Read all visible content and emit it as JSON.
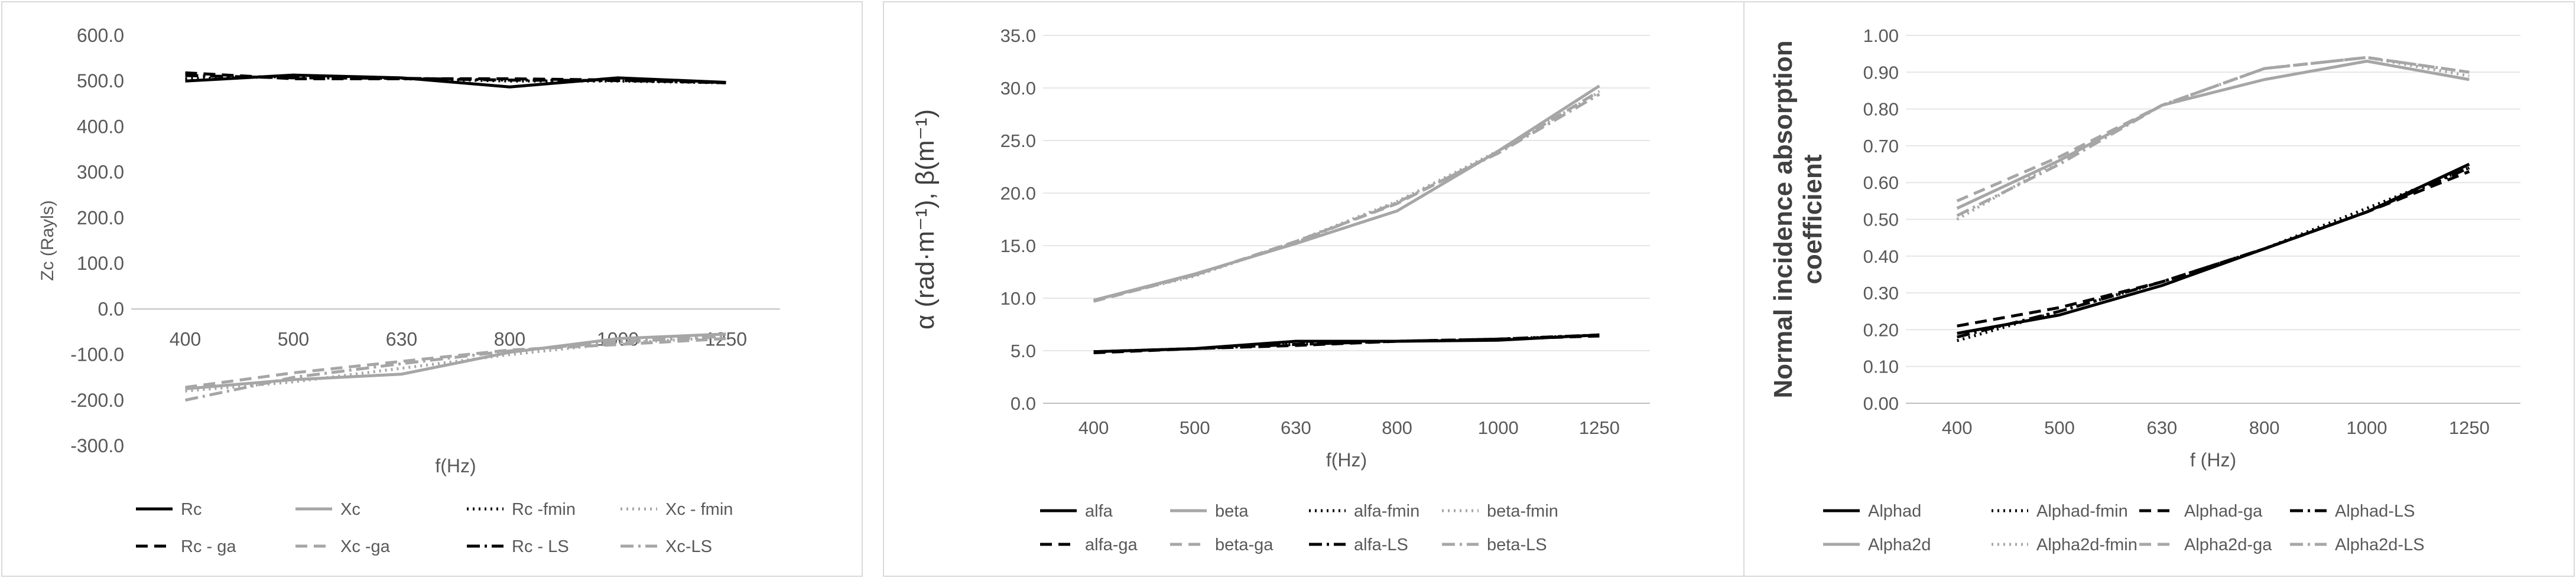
{
  "chart_data": [
    {
      "type": "line",
      "title": "",
      "xlabel": "f(Hz)",
      "ylabel": "Zc (Rayls)",
      "ylim": [
        -300,
        600
      ],
      "yticks": [
        "-300.0",
        "-200.0",
        "-100.0",
        "0.0",
        "100.0",
        "200.0",
        "300.0",
        "400.0",
        "500.0",
        "600.0"
      ],
      "categories": [
        "400",
        "500",
        "630",
        "800",
        "1000",
        "1250"
      ],
      "gridlines": false,
      "legend_position": "bottom",
      "series": [
        {
          "name": "Rc",
          "values": [
            500,
            513,
            507,
            487,
            507,
            497
          ],
          "color": "#000000",
          "dash": "solid"
        },
        {
          "name": "Xc",
          "values": [
            -175,
            -155,
            -143,
            -95,
            -65,
            -55
          ],
          "color": "#a6a6a6",
          "dash": "solid"
        },
        {
          "name": "Rc -fmin",
          "values": [
            505,
            510,
            505,
            500,
            500,
            496
          ],
          "color": "#000000",
          "dash": "dot"
        },
        {
          "name": "Xc - fmin",
          "values": [
            -180,
            -160,
            -130,
            -100,
            -75,
            -62
          ],
          "color": "#a6a6a6",
          "dash": "dot"
        },
        {
          "name": "Rc - ga",
          "values": [
            518,
            505,
            505,
            505,
            502,
            496
          ],
          "color": "#000000",
          "dash": "dash"
        },
        {
          "name": "Xc -ga",
          "values": [
            -172,
            -140,
            -115,
            -90,
            -78,
            -65
          ],
          "color": "#a6a6a6",
          "dash": "dash"
        },
        {
          "name": "Rc - LS",
          "values": [
            512,
            507,
            506,
            502,
            501,
            497
          ],
          "color": "#000000",
          "dash": "dashdot"
        },
        {
          "name": "Xc-LS",
          "values": [
            -200,
            -150,
            -120,
            -92,
            -72,
            -60
          ],
          "color": "#a6a6a6",
          "dash": "dashdot"
        }
      ]
    },
    {
      "type": "line",
      "title": "",
      "xlabel": "f(Hz)",
      "ylabel": "α (rad·m⁻¹), β(m⁻¹)",
      "ylim": [
        0,
        35
      ],
      "yticks": [
        "0.0",
        "5.0",
        "10.0",
        "15.0",
        "20.0",
        "25.0",
        "30.0",
        "35.0"
      ],
      "categories": [
        "400",
        "500",
        "630",
        "800",
        "1000",
        "1250"
      ],
      "gridlines": true,
      "legend_position": "bottom",
      "series": [
        {
          "name": "alfa",
          "values": [
            4.9,
            5.2,
            5.9,
            5.9,
            6.0,
            6.5
          ],
          "color": "#000000",
          "dash": "solid"
        },
        {
          "name": "beta",
          "values": [
            9.8,
            12.3,
            15.2,
            18.3,
            24.0,
            30.2
          ],
          "color": "#a6a6a6",
          "dash": "solid"
        },
        {
          "name": "alfa-fmin",
          "values": [
            4.9,
            5.2,
            5.6,
            5.9,
            6.1,
            6.5
          ],
          "color": "#000000",
          "dash": "dot"
        },
        {
          "name": "beta-fmin",
          "values": [
            9.8,
            12.1,
            15.4,
            19.2,
            24.0,
            29.6
          ],
          "color": "#a6a6a6",
          "dash": "dot"
        },
        {
          "name": "alfa-ga",
          "values": [
            4.8,
            5.2,
            5.5,
            5.9,
            6.1,
            6.4
          ],
          "color": "#000000",
          "dash": "dash"
        },
        {
          "name": "beta-ga",
          "values": [
            9.7,
            12.2,
            15.4,
            19.0,
            23.9,
            29.7
          ],
          "color": "#a6a6a6",
          "dash": "dash"
        },
        {
          "name": "alfa-LS",
          "values": [
            4.9,
            5.2,
            5.6,
            5.9,
            6.1,
            6.5
          ],
          "color": "#000000",
          "dash": "dashdot"
        },
        {
          "name": "beta-LS",
          "values": [
            9.8,
            12.2,
            15.3,
            19.1,
            23.8,
            29.4
          ],
          "color": "#a6a6a6",
          "dash": "dashdot"
        }
      ]
    },
    {
      "type": "line",
      "title": "",
      "xlabel": "f (Hz)",
      "ylabel": "Normal incidence absorption coefficient",
      "ylim": [
        0,
        1
      ],
      "yticks": [
        "0.00",
        "0.10",
        "0.20",
        "0.30",
        "0.40",
        "0.50",
        "0.60",
        "0.70",
        "0.80",
        "0.90",
        "1.00"
      ],
      "categories": [
        "400",
        "500",
        "630",
        "800",
        "1000",
        "1250"
      ],
      "gridlines": true,
      "legend_position": "bottom",
      "series": [
        {
          "name": "Alphad",
          "values": [
            0.19,
            0.24,
            0.32,
            0.42,
            0.52,
            0.65
          ],
          "color": "#000000",
          "dash": "solid"
        },
        {
          "name": "Alphad-fmin",
          "values": [
            0.17,
            0.25,
            0.33,
            0.42,
            0.53,
            0.64
          ],
          "color": "#000000",
          "dash": "dot"
        },
        {
          "name": "Alphad-ga",
          "values": [
            0.21,
            0.26,
            0.33,
            0.42,
            0.52,
            0.63
          ],
          "color": "#000000",
          "dash": "dash"
        },
        {
          "name": "Alphad-LS",
          "values": [
            0.18,
            0.25,
            0.33,
            0.42,
            0.52,
            0.64
          ],
          "color": "#000000",
          "dash": "dashdot"
        },
        {
          "name": "Alpha2d",
          "values": [
            0.53,
            0.66,
            0.81,
            0.88,
            0.93,
            0.88
          ],
          "color": "#a6a6a6",
          "dash": "solid"
        },
        {
          "name": "Alpha2d-fmin",
          "values": [
            0.5,
            0.66,
            0.81,
            0.91,
            0.94,
            0.89
          ],
          "color": "#a6a6a6",
          "dash": "dot"
        },
        {
          "name": "Alpha2d-ga",
          "values": [
            0.55,
            0.67,
            0.81,
            0.91,
            0.94,
            0.9
          ],
          "color": "#a6a6a6",
          "dash": "dash"
        },
        {
          "name": "Alpha2d-LS",
          "values": [
            0.51,
            0.65,
            0.81,
            0.91,
            0.94,
            0.9
          ],
          "color": "#a6a6a6",
          "dash": "dashdot"
        }
      ]
    }
  ]
}
